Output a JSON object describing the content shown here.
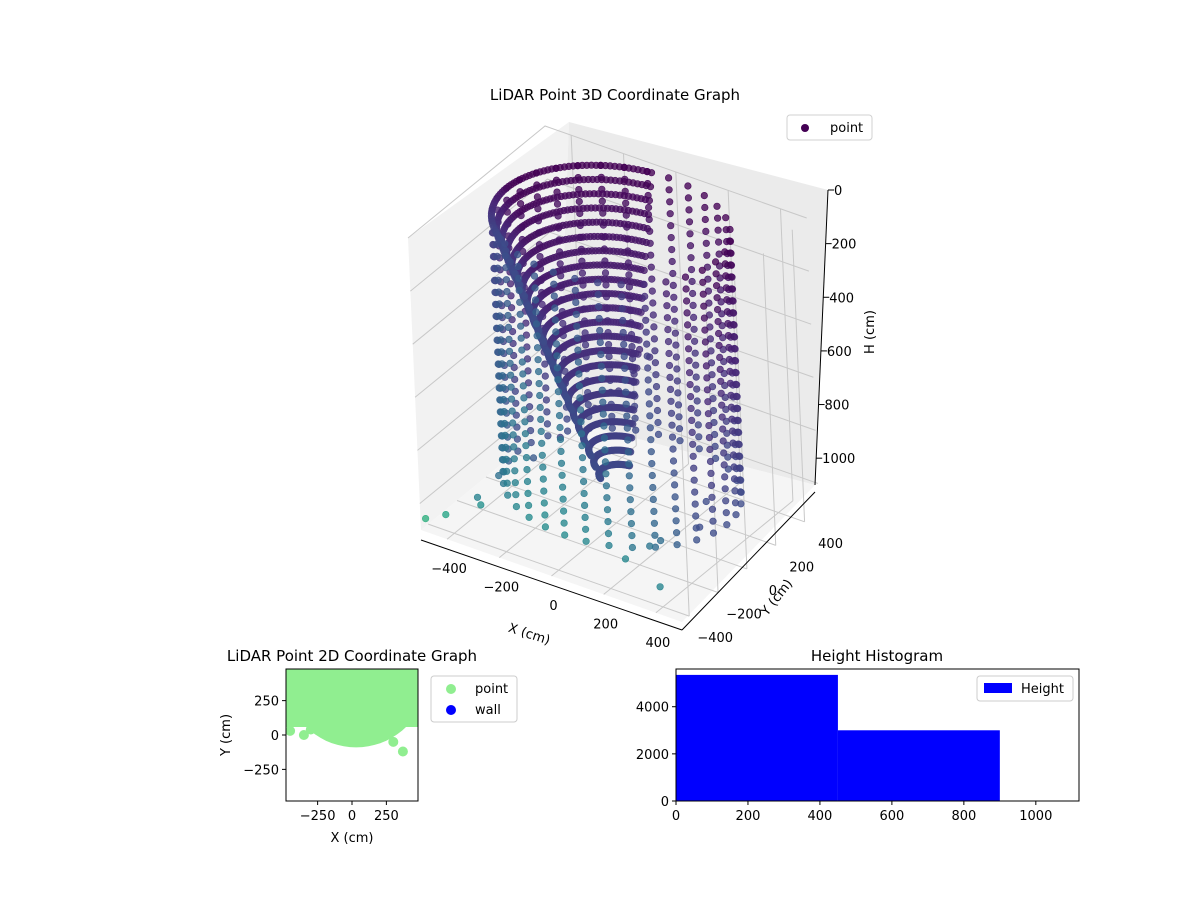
{
  "figure": {
    "background": "#ffffff"
  },
  "chart_data": [
    {
      "type": "scatter3d",
      "title": "LiDAR Point 3D Coordinate Graph",
      "xlabel": "X (cm)",
      "ylabel": "Y (cm)",
      "zlabel": "H (cm)",
      "xticks": [
        -400,
        -200,
        0,
        200,
        400
      ],
      "yticks": [
        -400,
        -200,
        0,
        200,
        400
      ],
      "zticks": [
        0,
        200,
        400,
        600,
        800,
        1000
      ],
      "xlim": [
        -500,
        500
      ],
      "ylim": [
        -450,
        500
      ],
      "zlim": [
        1100,
        0
      ],
      "grid": true,
      "zaxis_inverted": true,
      "colormap": "viridis",
      "legend": {
        "placement": "upper-right",
        "entries": [
          {
            "label": "point",
            "color": "#440154"
          }
        ]
      },
      "description_shapes": {
        "ring": {
          "center_xy": [
            0,
            50
          ],
          "radius": 400,
          "z_top": 0,
          "z_bottom": 1000,
          "columns": 32
        },
        "outliers": [
          [
            -480,
            -450,
            1050
          ],
          [
            -430,
            -400,
            1040
          ],
          [
            -420,
            -200,
            1060
          ],
          [
            -350,
            -300,
            1020
          ],
          [
            -380,
            -120,
            1000
          ],
          [
            -300,
            -20,
            950
          ],
          [
            -250,
            80,
            900
          ],
          [
            -200,
            120,
            860
          ],
          [
            -180,
            200,
            820
          ],
          [
            -120,
            260,
            760
          ],
          [
            -80,
            300,
            700
          ],
          [
            -40,
            340,
            640
          ],
          [
            250,
            -380,
            980
          ],
          [
            300,
            -300,
            950
          ],
          [
            320,
            -260,
            940
          ],
          [
            380,
            -380,
            1040
          ],
          [
            300,
            40,
            1030
          ],
          [
            260,
            160,
            1000
          ],
          [
            -60,
            260,
            600
          ],
          [
            -20,
            240,
            560
          ]
        ]
      }
    },
    {
      "type": "scatter",
      "title": "LiDAR Point 2D Coordinate Graph",
      "xlabel": "X (cm)",
      "ylabel": "Y (cm)",
      "xticks": [
        -250,
        0,
        250
      ],
      "yticks": [
        -250,
        0,
        250
      ],
      "xlim": [
        -480,
        480
      ],
      "ylim": [
        -480,
        480
      ],
      "legend": {
        "placement": "outside-right",
        "entries": [
          {
            "label": "point",
            "color": "#90ee90"
          },
          {
            "label": "wall",
            "color": "#0000ff"
          }
        ]
      },
      "series": [
        {
          "name": "point",
          "color": "#90ee90",
          "region": {
            "type": "upper-half-disc",
            "center": [
              30,
              430
            ],
            "radius": 520
          }
        },
        {
          "name": "point",
          "color": "#90ee90",
          "points": [
            [
              300,
              -50
            ],
            [
              370,
              -120
            ],
            [
              -300,
              40
            ],
            [
              -450,
              30
            ],
            [
              -350,
              0
            ]
          ]
        }
      ]
    },
    {
      "type": "histogram",
      "title": "Height Histogram",
      "xlabel": "",
      "ylabel": "",
      "xticks": [
        0,
        200,
        400,
        600,
        800,
        1000
      ],
      "yticks": [
        0,
        2000,
        4000
      ],
      "xlim": [
        0,
        1120
      ],
      "ylim": [
        0,
        5600
      ],
      "color": "#0000ff",
      "legend": {
        "placement": "upper-right",
        "entries": [
          {
            "label": "Height",
            "color": "#0000ff"
          }
        ]
      },
      "bins": [
        {
          "start": 0,
          "end": 450,
          "count": 5350
        },
        {
          "start": 450,
          "end": 900,
          "count": 3000
        }
      ]
    }
  ]
}
